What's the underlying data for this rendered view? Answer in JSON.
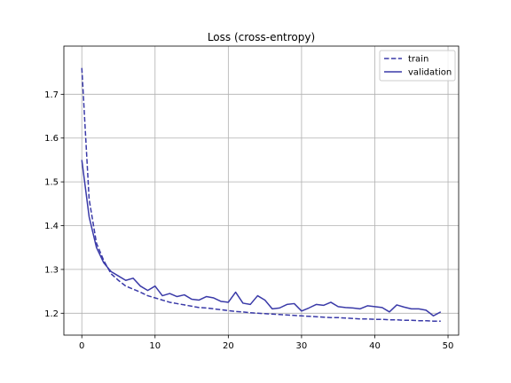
{
  "chart_data": {
    "type": "line",
    "title": "Loss (cross-entropy)",
    "xlabel": "",
    "ylabel": "",
    "xlim": [
      -2.45,
      51.45
    ],
    "ylim": [
      1.15,
      1.81
    ],
    "xticks": [
      0,
      10,
      20,
      30,
      40,
      50
    ],
    "yticks": [
      1.2,
      1.3,
      1.4,
      1.5,
      1.6,
      1.7
    ],
    "grid": true,
    "legend_position": "top-right",
    "series": [
      {
        "name": "train",
        "color": "#3a3aa8",
        "style": "dashed",
        "x": [
          0,
          1,
          2,
          3,
          4,
          5,
          6,
          7,
          8,
          9,
          10,
          11,
          12,
          13,
          14,
          15,
          16,
          17,
          18,
          19,
          20,
          21,
          22,
          23,
          24,
          25,
          26,
          27,
          28,
          29,
          30,
          31,
          32,
          33,
          34,
          35,
          36,
          37,
          38,
          39,
          40,
          41,
          42,
          43,
          44,
          45,
          46,
          47,
          48,
          49
        ],
        "values": [
          1.76,
          1.46,
          1.36,
          1.32,
          1.29,
          1.275,
          1.262,
          1.255,
          1.248,
          1.24,
          1.235,
          1.23,
          1.225,
          1.222,
          1.219,
          1.216,
          1.213,
          1.212,
          1.21,
          1.208,
          1.206,
          1.204,
          1.203,
          1.201,
          1.2,
          1.199,
          1.198,
          1.197,
          1.196,
          1.195,
          1.194,
          1.193,
          1.192,
          1.191,
          1.19,
          1.19,
          1.189,
          1.188,
          1.187,
          1.187,
          1.186,
          1.186,
          1.185,
          1.185,
          1.184,
          1.184,
          1.183,
          1.183,
          1.182,
          1.182
        ]
      },
      {
        "name": "validation",
        "color": "#3a3aa8",
        "style": "solid",
        "x": [
          0,
          1,
          2,
          3,
          4,
          5,
          6,
          7,
          8,
          9,
          10,
          11,
          12,
          13,
          14,
          15,
          16,
          17,
          18,
          19,
          20,
          21,
          22,
          23,
          24,
          25,
          26,
          27,
          28,
          29,
          30,
          31,
          32,
          33,
          34,
          35,
          36,
          37,
          38,
          39,
          40,
          41,
          42,
          43,
          44,
          45,
          46,
          47,
          48,
          49
        ],
        "values": [
          1.55,
          1.42,
          1.35,
          1.315,
          1.295,
          1.285,
          1.275,
          1.28,
          1.262,
          1.252,
          1.262,
          1.24,
          1.245,
          1.238,
          1.242,
          1.232,
          1.23,
          1.238,
          1.235,
          1.227,
          1.225,
          1.248,
          1.223,
          1.22,
          1.24,
          1.23,
          1.21,
          1.212,
          1.22,
          1.222,
          1.205,
          1.212,
          1.22,
          1.218,
          1.225,
          1.215,
          1.213,
          1.212,
          1.21,
          1.217,
          1.215,
          1.213,
          1.203,
          1.219,
          1.214,
          1.21,
          1.21,
          1.207,
          1.194,
          1.203
        ]
      }
    ]
  }
}
